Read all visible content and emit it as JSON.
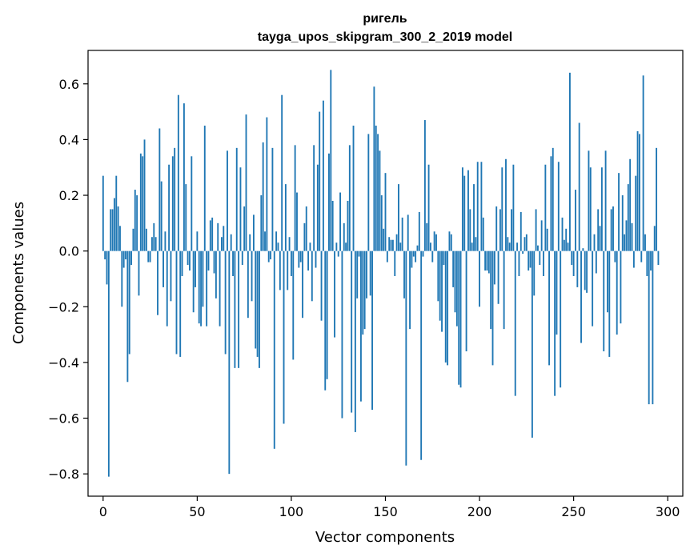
{
  "chart_data": {
    "type": "bar",
    "title": "ригель",
    "subtitle": "tayga_upos_skipgram_300_2_2019 model",
    "xlabel": "Vector components",
    "ylabel": "Components values",
    "xlim": [
      -8,
      308
    ],
    "ylim": [
      -0.88,
      0.72
    ],
    "xticks": [
      0,
      50,
      100,
      150,
      200,
      250,
      300
    ],
    "yticks": [
      -0.8,
      -0.6,
      -0.4,
      -0.2,
      0.0,
      0.2,
      0.4,
      0.6
    ],
    "ytick_labels": [
      "−0.8",
      "−0.6",
      "−0.4",
      "−0.2",
      "0.0",
      "0.2",
      "0.4",
      "0.6"
    ],
    "grid": false,
    "bar_color": "#1f77b4",
    "values": [
      0.27,
      -0.03,
      -0.12,
      -0.81,
      0.15,
      0.15,
      0.19,
      0.27,
      0.16,
      0.09,
      -0.2,
      -0.06,
      -0.03,
      -0.47,
      -0.37,
      -0.05,
      0.08,
      0.22,
      0.2,
      -0.16,
      0.35,
      0.34,
      0.4,
      0.08,
      -0.04,
      -0.04,
      0.05,
      0.1,
      0.05,
      -0.23,
      0.44,
      0.25,
      -0.13,
      0.07,
      -0.27,
      0.31,
      -0.18,
      0.34,
      0.37,
      -0.37,
      0.56,
      -0.38,
      -0.09,
      0.53,
      0.24,
      -0.05,
      -0.07,
      0.34,
      -0.22,
      -0.13,
      0.07,
      -0.26,
      -0.27,
      -0.2,
      0.45,
      -0.27,
      -0.07,
      0.11,
      0.12,
      -0.08,
      -0.17,
      0.1,
      -0.27,
      0.05,
      0.09,
      -0.37,
      0.36,
      -0.8,
      0.06,
      -0.09,
      -0.42,
      0.37,
      -0.42,
      0.3,
      -0.05,
      0.16,
      0.49,
      -0.24,
      0.06,
      -0.18,
      0.13,
      -0.35,
      -0.38,
      -0.42,
      0.2,
      0.39,
      0.07,
      0.48,
      -0.04,
      -0.03,
      0.37,
      -0.71,
      0.07,
      0.03,
      -0.14,
      0.56,
      -0.62,
      0.24,
      -0.14,
      0.05,
      -0.09,
      -0.39,
      0.38,
      0.21,
      -0.06,
      -0.04,
      -0.24,
      0.1,
      0.16,
      -0.07,
      0.03,
      -0.18,
      0.38,
      -0.06,
      0.31,
      0.5,
      -0.25,
      0.54,
      -0.5,
      -0.46,
      0.35,
      0.65,
      0.18,
      -0.31,
      0.03,
      -0.02,
      0.21,
      -0.6,
      0.1,
      0.03,
      0.18,
      0.38,
      -0.58,
      0.45,
      -0.65,
      -0.17,
      -0.02,
      -0.54,
      -0.3,
      -0.28,
      -0.17,
      0.42,
      -0.16,
      -0.57,
      0.59,
      0.45,
      0.42,
      0.36,
      0.2,
      0.08,
      0.28,
      -0.04,
      0.05,
      0.04,
      0.04,
      -0.09,
      0.06,
      0.24,
      0.03,
      0.12,
      -0.17,
      -0.77,
      0.13,
      -0.28,
      -0.06,
      -0.02,
      -0.04,
      0.02,
      0.14,
      -0.75,
      -0.02,
      0.47,
      0.1,
      0.31,
      0.03,
      -0.04,
      0.07,
      0.06,
      -0.18,
      -0.25,
      -0.29,
      -0.05,
      -0.4,
      -0.41,
      0.07,
      0.06,
      -0.13,
      -0.22,
      -0.27,
      -0.48,
      -0.49,
      0.3,
      0.27,
      -0.36,
      0.29,
      0.15,
      0.03,
      0.24,
      0.05,
      0.32,
      -0.2,
      0.32,
      0.12,
      -0.07,
      -0.07,
      -0.08,
      -0.28,
      -0.41,
      -0.12,
      0.16,
      -0.19,
      0.15,
      0.3,
      -0.28,
      0.33,
      0.05,
      0.03,
      0.15,
      0.31,
      -0.52,
      0.03,
      -0.09,
      0.14,
      -0.01,
      0.05,
      0.06,
      -0.07,
      -0.06,
      -0.67,
      -0.16,
      0.15,
      0.02,
      -0.05,
      0.11,
      -0.09,
      0.31,
      0.08,
      -0.41,
      0.34,
      0.37,
      -0.52,
      -0.3,
      0.32,
      -0.49,
      0.12,
      0.04,
      0.08,
      0.03,
      0.64,
      -0.05,
      -0.09,
      0.22,
      -0.13,
      0.46,
      -0.33,
      0.01,
      -0.14,
      -0.15,
      0.36,
      0.3,
      -0.27,
      0.06,
      -0.08,
      0.15,
      0.09,
      0.3,
      -0.36,
      0.36,
      -0.22,
      -0.38,
      0.15,
      0.16,
      -0.04,
      -0.3,
      0.28,
      -0.26,
      0.2,
      0.06,
      0.11,
      0.24,
      0.33,
      0.1,
      -0.06,
      0.27,
      0.43,
      0.42,
      -0.04,
      0.63,
      0.06,
      -0.09,
      -0.55,
      -0.07,
      -0.55,
      0.09,
      0.37,
      -0.05
    ]
  }
}
